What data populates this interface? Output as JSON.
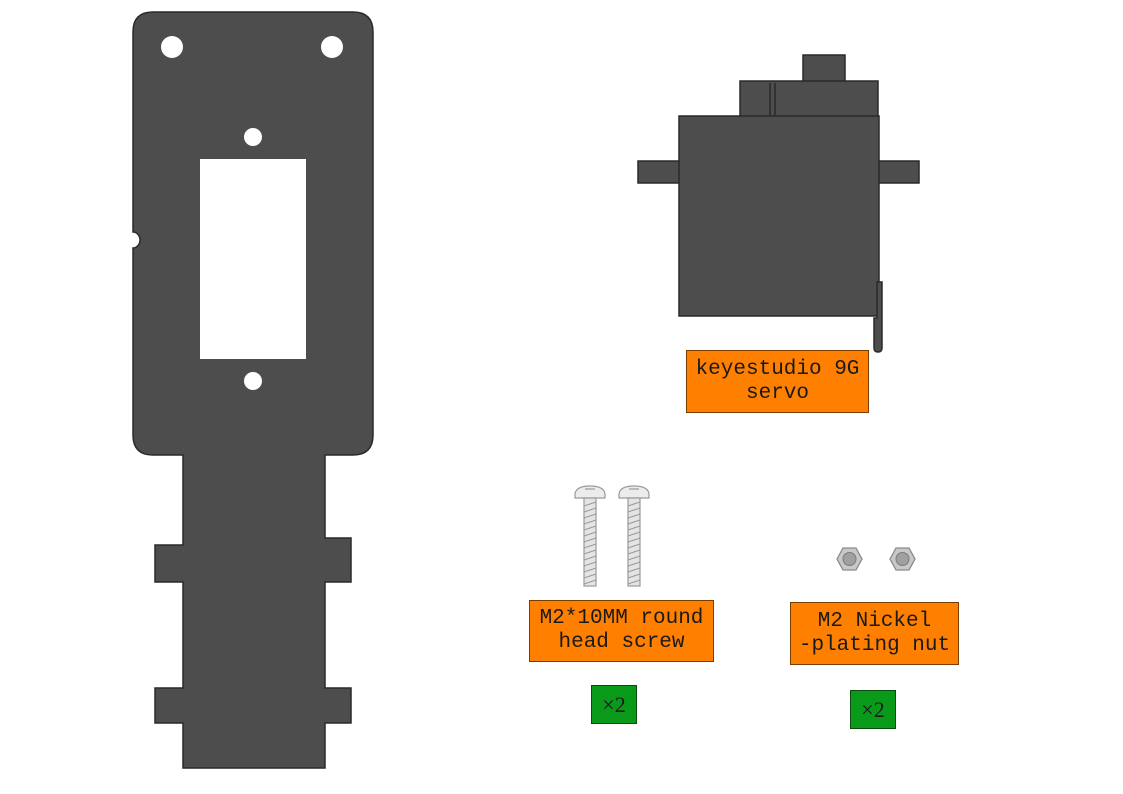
{
  "colors": {
    "part_fill": "#4d4d4d",
    "part_stroke": "#2a2a2a",
    "label_bg": "#ff7f00",
    "qty_bg": "#0a9a1a",
    "metal": "#c8c8c8"
  },
  "parts": {
    "servo": {
      "label_line1": "keyestudio 9G",
      "label_line2": "servo",
      "icon": "servo-icon"
    },
    "screw": {
      "label_line1": "M2*10MM round",
      "label_line2": "head screw",
      "quantity": "×2",
      "icon": "screw-icon"
    },
    "nut": {
      "label_line1": "M2 Nickel",
      "label_line2": "-plating nut",
      "quantity": "×2",
      "icon": "hex-nut-icon"
    },
    "plate": {
      "icon": "acrylic-plate-icon"
    }
  }
}
